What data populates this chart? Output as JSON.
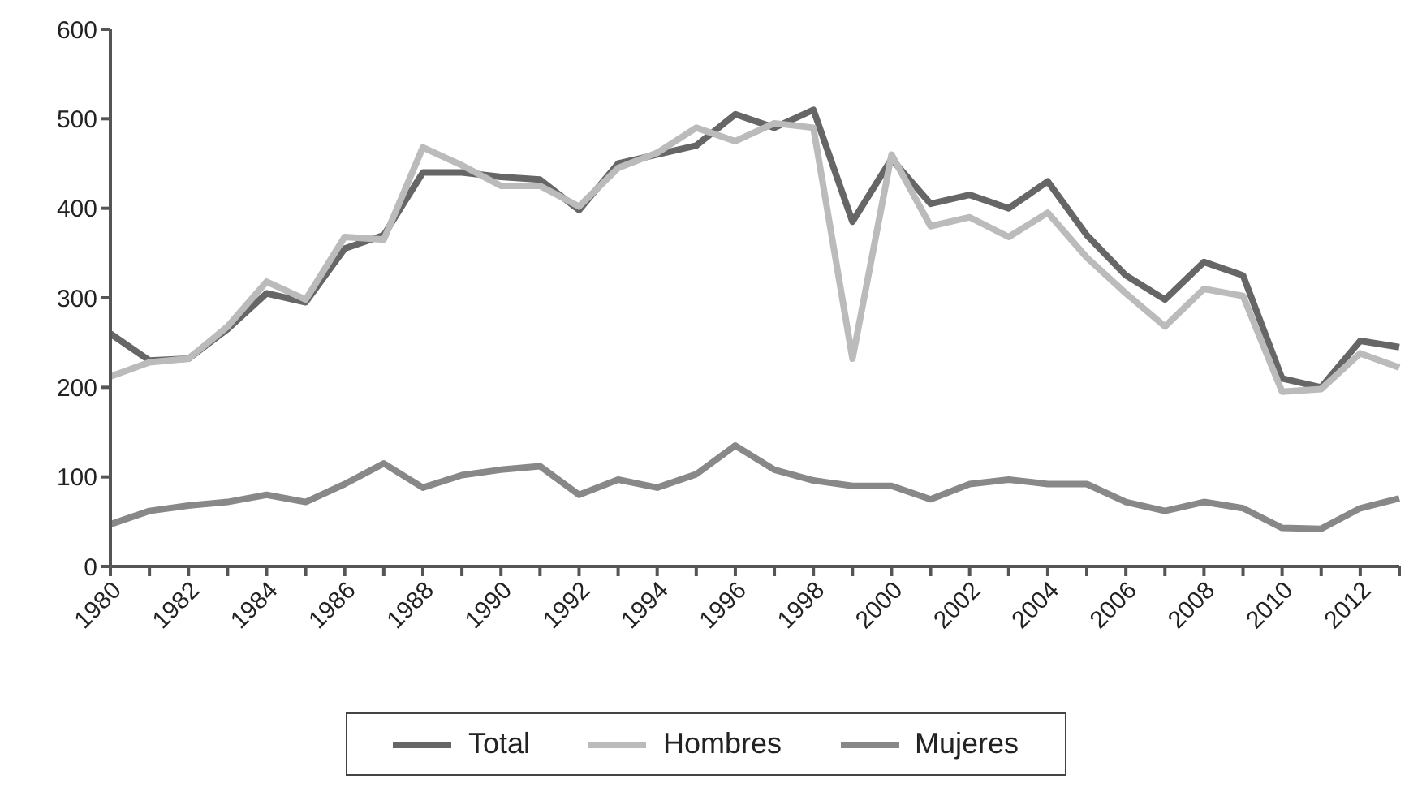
{
  "chart_data": {
    "type": "line",
    "categories": [
      "1980",
      null,
      "1982",
      null,
      "1984",
      null,
      "1986",
      null,
      "1988",
      null,
      "1990",
      null,
      "1992",
      null,
      "1994",
      null,
      "1996",
      null,
      "1998",
      null,
      "2000",
      null,
      "2002",
      null,
      "2004",
      null,
      "2006",
      null,
      "2008",
      null,
      "2010",
      null,
      "2012",
      null
    ],
    "series": [
      {
        "name": "Total",
        "color": "#666666",
        "values": [
          260,
          230,
          232,
          265,
          305,
          295,
          355,
          370,
          440,
          440,
          435,
          432,
          398,
          450,
          460,
          470,
          505,
          490,
          510,
          385,
          455,
          405,
          415,
          400,
          430,
          370,
          325,
          298,
          340,
          325,
          210,
          200,
          252,
          245
        ]
      },
      {
        "name": "Hombres",
        "color": "#bbbbbb",
        "values": [
          212,
          228,
          232,
          268,
          318,
          298,
          368,
          365,
          468,
          448,
          425,
          425,
          402,
          445,
          462,
          490,
          475,
          495,
          490,
          232,
          460,
          380,
          390,
          368,
          395,
          345,
          305,
          268,
          310,
          302,
          195,
          198,
          238,
          222
        ]
      },
      {
        "name": "Mujeres",
        "color": "#888888",
        "values": [
          47,
          62,
          68,
          72,
          80,
          72,
          92,
          115,
          88,
          102,
          108,
          112,
          80,
          97,
          88,
          103,
          135,
          108,
          96,
          90,
          90,
          75,
          92,
          97,
          92,
          92,
          72,
          62,
          72,
          65,
          43,
          42,
          65,
          76
        ]
      }
    ],
    "ylim": [
      0,
      600
    ],
    "yticks": [
      0,
      100,
      200,
      300,
      400,
      500,
      600
    ],
    "grid": false,
    "legend": "bottom",
    "marker": "none",
    "line_style": "solid"
  }
}
